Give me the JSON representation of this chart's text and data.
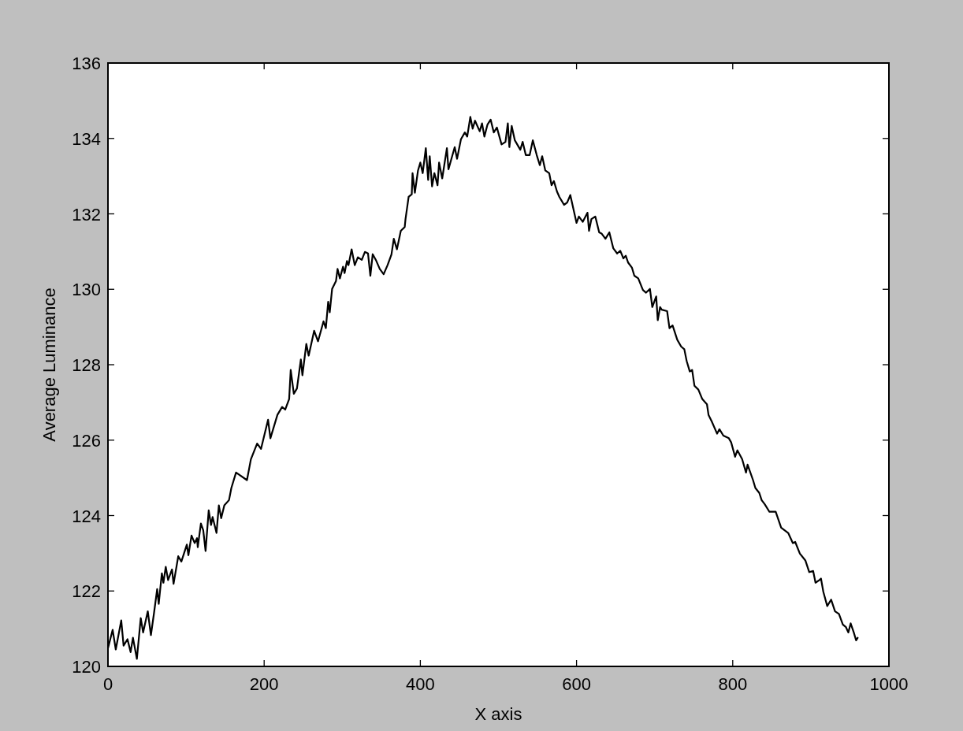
{
  "chart_data": {
    "type": "line",
    "xlabel": "X axis",
    "ylabel": "Average Luminance",
    "x": [
      0,
      6,
      10,
      17,
      20,
      25,
      29,
      32,
      37,
      42,
      45,
      51,
      55,
      59,
      63,
      65,
      69,
      71,
      74,
      77,
      82,
      84,
      90,
      94,
      101,
      103,
      107,
      111,
      114,
      115,
      119,
      122,
      125,
      129,
      132,
      134,
      139,
      142,
      145,
      149,
      155,
      158,
      164,
      178,
      183,
      191,
      196,
      205,
      208,
      217,
      223,
      227,
      232,
      234,
      238,
      242,
      247,
      249,
      254,
      257,
      264,
      269,
      276,
      279,
      282,
      284,
      287,
      292,
      294,
      297,
      301,
      303,
      306,
      308,
      312,
      316,
      320,
      325,
      329,
      333,
      336,
      339,
      343,
      348,
      353,
      358,
      363,
      366,
      370,
      375,
      380,
      381,
      385,
      389,
      390,
      393,
      397,
      400,
      403,
      407,
      410,
      412,
      415,
      418,
      422,
      424,
      428,
      434,
      436,
      444,
      447,
      452,
      457,
      460,
      464,
      467,
      470,
      476,
      479,
      482,
      486,
      490,
      494,
      498,
      504,
      509,
      512,
      514,
      517,
      521,
      528,
      531,
      535,
      540,
      544,
      549,
      553,
      556,
      560,
      565,
      568,
      571,
      575,
      578,
      584,
      588,
      592,
      600,
      603,
      608,
      614,
      616,
      619,
      624,
      629,
      632,
      637,
      642,
      647,
      652,
      656,
      660,
      663,
      666,
      671,
      674,
      679,
      685,
      689,
      694,
      697,
      702,
      704,
      707,
      709,
      716,
      719,
      723,
      729,
      734,
      738,
      741,
      745,
      748,
      751,
      756,
      761,
      767,
      769,
      773,
      780,
      783,
      788,
      795,
      798,
      803,
      806,
      812,
      817,
      819,
      826,
      829,
      834,
      837,
      841,
      847,
      852,
      855,
      862,
      871,
      877,
      880,
      886,
      893,
      898,
      903,
      906,
      911,
      913,
      916,
      921,
      926,
      931,
      936,
      941,
      945,
      948,
      951,
      955,
      958,
      960
    ],
    "series": [
      {
        "color": "#000000",
        "values": [
          120.48,
          120.97,
          120.45,
          121.22,
          120.55,
          120.72,
          120.38,
          120.76,
          120.2,
          121.28,
          120.9,
          121.46,
          120.83,
          121.42,
          122.05,
          121.66,
          122.47,
          122.22,
          122.64,
          122.29,
          122.57,
          122.19,
          122.92,
          122.78,
          123.23,
          122.95,
          123.47,
          123.27,
          123.4,
          123.16,
          123.79,
          123.61,
          123.06,
          124.14,
          123.75,
          123.96,
          123.54,
          124.27,
          123.93,
          124.27,
          124.41,
          124.73,
          125.14,
          124.94,
          125.49,
          125.91,
          125.77,
          126.54,
          126.05,
          126.67,
          126.88,
          126.81,
          127.09,
          127.86,
          127.23,
          127.37,
          128.14,
          127.72,
          128.55,
          128.24,
          128.9,
          128.62,
          129.15,
          128.97,
          129.67,
          129.39,
          130.01,
          130.22,
          130.54,
          130.29,
          130.6,
          130.43,
          130.75,
          130.64,
          131.06,
          130.64,
          130.85,
          130.78,
          130.99,
          130.95,
          130.36,
          130.93,
          130.78,
          130.54,
          130.4,
          130.64,
          130.92,
          131.34,
          131.06,
          131.55,
          131.65,
          131.86,
          132.45,
          132.52,
          133.08,
          132.56,
          133.15,
          133.36,
          133.08,
          133.74,
          132.9,
          133.53,
          132.73,
          133.08,
          132.76,
          133.36,
          132.94,
          133.74,
          133.18,
          133.77,
          133.46,
          133.98,
          134.16,
          134.05,
          134.57,
          134.26,
          134.47,
          134.19,
          134.4,
          134.05,
          134.37,
          134.5,
          134.16,
          134.29,
          133.84,
          133.91,
          134.4,
          133.77,
          134.33,
          133.95,
          133.7,
          133.91,
          133.56,
          133.56,
          133.95,
          133.56,
          133.29,
          133.53,
          133.15,
          133.08,
          132.76,
          132.87,
          132.59,
          132.45,
          132.24,
          132.3,
          132.5,
          131.76,
          131.93,
          131.79,
          132.03,
          131.55,
          131.86,
          131.93,
          131.51,
          131.48,
          131.34,
          131.51,
          131.09,
          130.95,
          131.02,
          130.82,
          130.89,
          130.71,
          130.57,
          130.36,
          130.29,
          129.98,
          129.91,
          130.01,
          129.53,
          129.81,
          129.18,
          129.53,
          129.46,
          129.42,
          128.97,
          129.04,
          128.66,
          128.48,
          128.41,
          128.1,
          127.82,
          127.86,
          127.44,
          127.34,
          127.09,
          126.95,
          126.67,
          126.5,
          126.17,
          126.29,
          126.12,
          126.05,
          125.94,
          125.56,
          125.73,
          125.5,
          125.14,
          125.35,
          124.94,
          124.73,
          124.6,
          124.41,
          124.3,
          124.1,
          124.1,
          124.1,
          123.68,
          123.54,
          123.27,
          123.3,
          122.99,
          122.81,
          122.5,
          122.53,
          122.22,
          122.29,
          122.33,
          121.98,
          121.6,
          121.77,
          121.46,
          121.39,
          121.11,
          121.04,
          120.9,
          121.14,
          120.9,
          120.69,
          120.76
        ]
      }
    ],
    "xlim": [
      0,
      1000
    ],
    "ylim": [
      120,
      136
    ],
    "xticks": [
      0,
      200,
      400,
      600,
      800,
      1000
    ],
    "yticks": [
      120,
      122,
      124,
      126,
      128,
      130,
      132,
      134,
      136
    ]
  }
}
